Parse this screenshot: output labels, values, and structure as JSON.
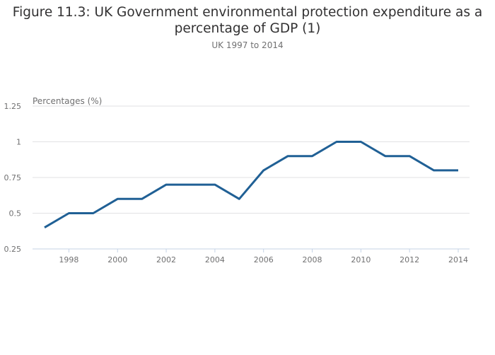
{
  "chart_data": {
    "type": "line",
    "title": "Figure 11.3: UK Government environmental protection expenditure as a percentage of GDP (1)",
    "subtitle": "UK 1997 to 2014",
    "xlabel": "",
    "ylabel": "Percentages (%)",
    "x": [
      1997,
      1998,
      1999,
      2000,
      2001,
      2002,
      2003,
      2004,
      2005,
      2006,
      2007,
      2008,
      2009,
      2010,
      2011,
      2012,
      2013,
      2014
    ],
    "series": [
      {
        "name": "Environmental protection expenditure as % of GDP",
        "color": "#206095",
        "values": [
          0.4,
          0.5,
          0.5,
          0.6,
          0.6,
          0.7,
          0.7,
          0.7,
          0.6,
          0.8,
          0.9,
          0.9,
          1.0,
          1.0,
          0.9,
          0.9,
          0.8,
          0.8
        ]
      }
    ],
    "xticks": [
      "1998",
      "2000",
      "2002",
      "2004",
      "2006",
      "2008",
      "2010",
      "2012",
      "2014"
    ],
    "yticks": [
      "0.25",
      "0.5",
      "0.75",
      "1",
      "1.25"
    ],
    "ytick_values": [
      0.25,
      0.5,
      0.75,
      1.0,
      1.25
    ],
    "ylim": [
      0.25,
      1.25
    ],
    "xlim": [
      1996.5,
      2014.5
    ],
    "grid": true,
    "legend": "none"
  }
}
